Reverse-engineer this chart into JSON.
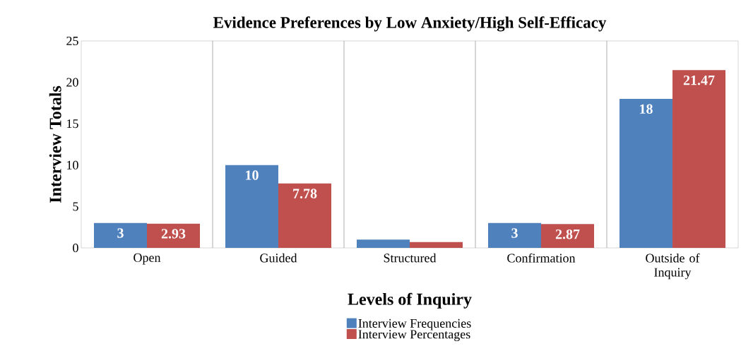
{
  "chart_data": {
    "type": "bar",
    "title": "Evidence Preferences by Low Anxiety/High Self-Efficacy",
    "xlabel": "Levels of Inquiry",
    "ylabel": "Interview Totals",
    "categories": [
      "Open",
      "Guided",
      "Structured",
      "Confirmation",
      "Outside of Inquiry"
    ],
    "series": [
      {
        "name": "Interview Frequencies",
        "color": "#4f81bd",
        "values": [
          3,
          10,
          1,
          3,
          18
        ],
        "value_labels": [
          "3",
          "10",
          null,
          "3",
          "18"
        ]
      },
      {
        "name": "Interview Percentages",
        "color": "#c0504d",
        "values": [
          2.93,
          7.78,
          0.7,
          2.87,
          21.47
        ],
        "value_labels": [
          "2.93",
          "7.78",
          null,
          "2.87",
          "21.47"
        ]
      }
    ],
    "ylim": [
      0,
      25
    ],
    "yticks": [
      0,
      5,
      10,
      15,
      20,
      25
    ],
    "grid": "x",
    "legend": "bottom"
  }
}
